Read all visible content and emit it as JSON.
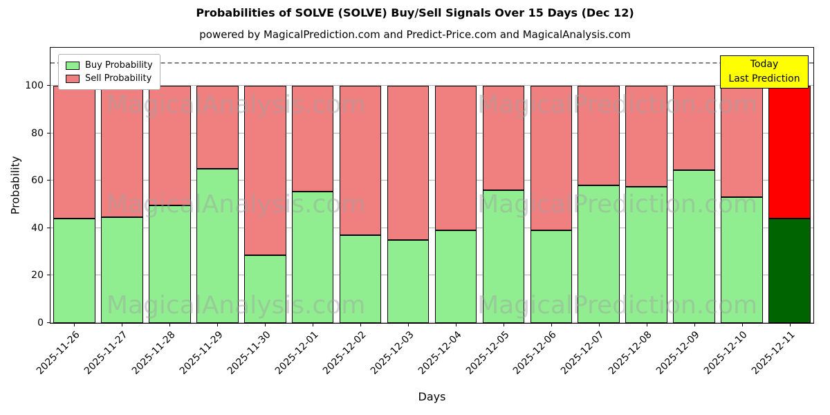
{
  "title": "Probabilities of SOLVE (SOLVE) Buy/Sell Signals Over 15 Days (Dec 12)",
  "subtitle": "powered by MagicalPrediction.com and Predict-Price.com and MagicalAnalysis.com",
  "xlabel": "Days",
  "ylabel": "Probability",
  "legend": {
    "buy": "Buy Probability",
    "sell": "Sell Probability"
  },
  "today_box": {
    "line1": "Today",
    "line2": "Last Prediction"
  },
  "watermarks": [
    "MagicalAnalysis.com",
    "MagicalPrediction.com"
  ],
  "colors": {
    "buy": "#90ee90",
    "sell": "#f08080",
    "buy_today": "#006400",
    "sell_today": "#ff0000",
    "today_box_bg": "#ffff00",
    "gridline": "#b0b0b0",
    "dashed_line": "#7f7f7f"
  },
  "chart_data": {
    "type": "bar",
    "stacked": true,
    "title": "Probabilities of SOLVE (SOLVE) Buy/Sell Signals Over 15 Days (Dec 12)",
    "xlabel": "Days",
    "ylabel": "Probability",
    "categories": [
      "2025-11-26",
      "2025-11-27",
      "2025-11-28",
      "2025-11-29",
      "2025-11-30",
      "2025-12-01",
      "2025-12-02",
      "2025-12-03",
      "2025-12-04",
      "2025-12-05",
      "2025-12-06",
      "2025-12-07",
      "2025-12-08",
      "2025-12-09",
      "2025-12-10",
      "2025-12-11"
    ],
    "series": [
      {
        "name": "Buy Probability",
        "values": [
          44,
          44.5,
          49.5,
          65,
          28.5,
          55.5,
          37,
          35,
          39,
          56,
          39,
          58,
          57.5,
          64.5,
          53,
          44
        ]
      },
      {
        "name": "Sell Probability",
        "values": [
          56,
          55.5,
          50.5,
          35,
          71.5,
          44.5,
          63,
          65,
          61,
          44,
          61,
          42,
          42.5,
          35.5,
          47,
          56
        ]
      }
    ],
    "ylim": [
      0,
      116
    ],
    "yticks": [
      0,
      20,
      40,
      60,
      80,
      100
    ],
    "dashed_line_y": 110,
    "grid": "horizontal",
    "legend_position": "upper-left"
  }
}
